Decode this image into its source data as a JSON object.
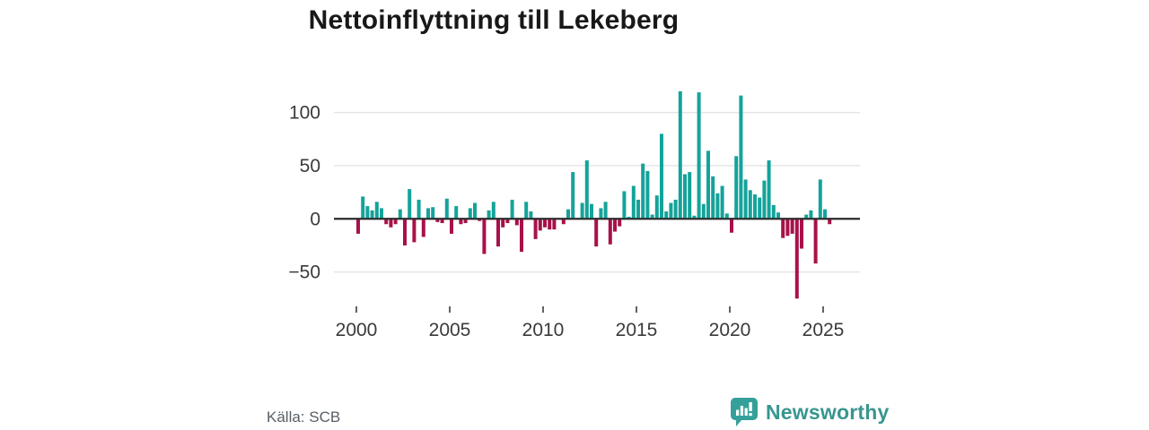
{
  "title": "Nettoinflyttning till Lekeberg",
  "source": "Källa: SCB",
  "brand": {
    "name": "Newsworthy",
    "logo_icon": "speech-bubble-bar-chart"
  },
  "colors": {
    "positive": "#14a39a",
    "negative": "#a8114a",
    "grid": "#e4e4e4",
    "zero_line": "#2b2b2b",
    "axis_text": "#3a3a3a",
    "title_text": "#181818",
    "source_text": "#575f66",
    "brand_teal": "#38968f"
  },
  "chart_data": {
    "type": "bar",
    "title": "Nettoinflyttning till Lekeberg",
    "xlabel": "",
    "ylabel": "",
    "frequency": "quarterly",
    "x_start": "2000-Q1",
    "x_end": "2025-Q2",
    "ylim": [
      -80,
      125
    ],
    "grid": true,
    "y_ticks": [
      {
        "value": 100,
        "label": "100"
      },
      {
        "value": 50,
        "label": "50"
      },
      {
        "value": 0,
        "label": "0"
      },
      {
        "value": -50,
        "label": "−50"
      }
    ],
    "x_ticks": [
      {
        "year": 2000,
        "label": "2000"
      },
      {
        "year": 2005,
        "label": "2005"
      },
      {
        "year": 2010,
        "label": "2010"
      },
      {
        "year": 2015,
        "label": "2015"
      },
      {
        "year": 2020,
        "label": "2020"
      },
      {
        "year": 2025,
        "label": "2025"
      }
    ],
    "series_name": "Nettoinflyttning",
    "values_by_year": [
      {
        "year": 2000,
        "q": [
          -14,
          21,
          12,
          8
        ]
      },
      {
        "year": 2001,
        "q": [
          16,
          10,
          -5,
          -8
        ]
      },
      {
        "year": 2002,
        "q": [
          -5,
          9,
          -25,
          28
        ]
      },
      {
        "year": 2003,
        "q": [
          -22,
          18,
          -17,
          10
        ]
      },
      {
        "year": 2004,
        "q": [
          11,
          -3,
          -4,
          19
        ]
      },
      {
        "year": 2005,
        "q": [
          -14,
          12,
          -5,
          -4
        ]
      },
      {
        "year": 2006,
        "q": [
          10,
          15,
          -2,
          -33
        ]
      },
      {
        "year": 2007,
        "q": [
          8,
          16,
          -26,
          -8
        ]
      },
      {
        "year": 2008,
        "q": [
          -4,
          18,
          -6,
          -31
        ]
      },
      {
        "year": 2009,
        "q": [
          16,
          7,
          -19,
          -11
        ]
      },
      {
        "year": 2010,
        "q": [
          -8,
          -10,
          -10,
          0
        ]
      },
      {
        "year": 2011,
        "q": [
          -5,
          9,
          44,
          0
        ]
      },
      {
        "year": 2012,
        "q": [
          15,
          55,
          14,
          -26
        ]
      },
      {
        "year": 2013,
        "q": [
          10,
          16,
          -24,
          -12
        ]
      },
      {
        "year": 2014,
        "q": [
          -7,
          26,
          2,
          31
        ]
      },
      {
        "year": 2015,
        "q": [
          18,
          52,
          45,
          4
        ]
      },
      {
        "year": 2016,
        "q": [
          22,
          80,
          7,
          15
        ]
      },
      {
        "year": 2017,
        "q": [
          18,
          120,
          42,
          44
        ]
      },
      {
        "year": 2018,
        "q": [
          3,
          119,
          14,
          64
        ]
      },
      {
        "year": 2019,
        "q": [
          40,
          24,
          31,
          5
        ]
      },
      {
        "year": 2020,
        "q": [
          -13,
          59,
          116,
          37
        ]
      },
      {
        "year": 2021,
        "q": [
          27,
          23,
          20,
          36
        ]
      },
      {
        "year": 2022,
        "q": [
          55,
          13,
          6,
          -18
        ]
      },
      {
        "year": 2023,
        "q": [
          -16,
          -14,
          -75,
          -28
        ]
      },
      {
        "year": 2024,
        "q": [
          4,
          8,
          -42,
          37
        ]
      },
      {
        "year": 2025,
        "q": [
          9,
          -5
        ]
      }
    ]
  }
}
